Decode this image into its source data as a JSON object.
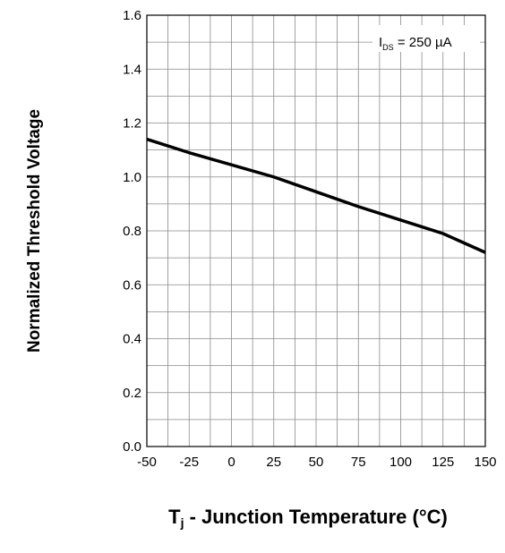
{
  "chart_data": {
    "type": "line",
    "title": "",
    "ylabel": "Normalized Threshold Voltage",
    "xlabel": {
      "symbol": "T",
      "subscript": "j",
      "text": " - Junction Temperature (°C)"
    },
    "annotation": {
      "symbol": "I",
      "subscript": "DS",
      "text": " = 250 µA"
    },
    "xlim": [
      -50,
      150
    ],
    "ylim": [
      0.0,
      1.6
    ],
    "x_ticks": [
      "-50",
      "-25",
      "0",
      "25",
      "50",
      "75",
      "100",
      "125",
      "150"
    ],
    "y_ticks": [
      "0.0",
      "0.2",
      "0.4",
      "0.6",
      "0.8",
      "1.0",
      "1.2",
      "1.4",
      "1.6"
    ],
    "grid": true,
    "series": [
      {
        "x": [
          -50,
          -25,
          0,
          25,
          50,
          75,
          100,
          125,
          150
        ],
        "y": [
          1.14,
          1.09,
          1.045,
          1.0,
          0.945,
          0.89,
          0.84,
          0.79,
          0.72
        ]
      }
    ]
  }
}
